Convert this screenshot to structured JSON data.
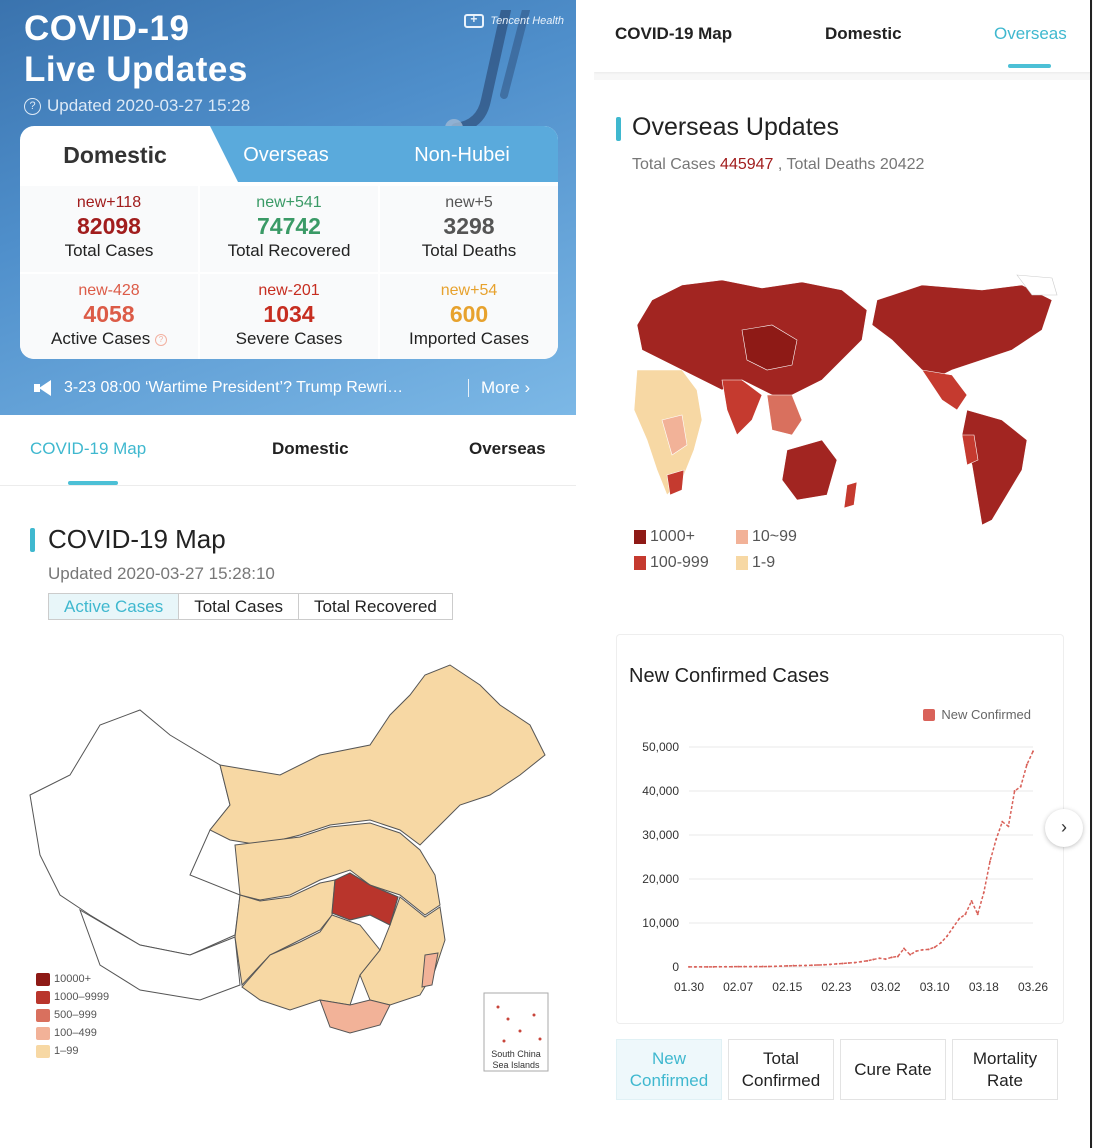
{
  "header": {
    "title_line1": "COVID-19",
    "title_line2": "Live Updates",
    "brand": "Tencent Health",
    "updated": "Updated 2020-03-27 15:28"
  },
  "stats": {
    "tabs": [
      "Domestic",
      "Overseas",
      "Non-Hubei"
    ],
    "cells": [
      {
        "new": "new+118",
        "value": "82098",
        "label": "Total Cases",
        "color": "#a11d1d"
      },
      {
        "new": "new+541",
        "value": "74742",
        "label": "Total Recovered",
        "color": "#3a9a66"
      },
      {
        "new": "new+5",
        "value": "3298",
        "label": "Total Deaths",
        "color": "#555555"
      },
      {
        "new": "new-428",
        "value": "4058",
        "label": "Active Cases",
        "color": "#dc5b47"
      },
      {
        "new": "new-201",
        "value": "1034",
        "label": "Severe Cases",
        "color": "#c62d20"
      },
      {
        "new": "new+54",
        "value": "600",
        "label": "Imported Cases",
        "color": "#e7a22e"
      }
    ]
  },
  "announcement": {
    "text": "3-23 08:00 ‘Wartime President’? Trump Rewri…",
    "more": "More"
  },
  "nav": {
    "items": [
      "COVID-19 Map",
      "Domestic",
      "Overseas"
    ]
  },
  "china_map": {
    "title": "COVID-19 Map",
    "updated": "Updated 2020-03-27 15:28:10",
    "segments": [
      "Active Cases",
      "Total Cases",
      "Total Recovered"
    ],
    "legend": [
      {
        "label": "10000+",
        "color": "#8e1a16"
      },
      {
        "label": "1000–9999",
        "color": "#b9352c"
      },
      {
        "label": "500–999",
        "color": "#d9705e"
      },
      {
        "label": "100–499",
        "color": "#f2b298"
      },
      {
        "label": "1–99",
        "color": "#f7d8a4"
      }
    ],
    "inset_label_1": "South China",
    "inset_label_2": "Sea Islands"
  },
  "overseas": {
    "title": "Overseas Updates",
    "totals_prefix": "Total Cases",
    "total_cases": "445947",
    "totals_middle": ", Total Deaths",
    "total_deaths": "20422",
    "legend": [
      {
        "label": "1000+",
        "color": "#8e1a16"
      },
      {
        "label": "10~99",
        "color": "#f2b298"
      },
      {
        "label": "100-999",
        "color": "#c53a2f"
      },
      {
        "label": "1-9",
        "color": "#f7d8a4"
      }
    ]
  },
  "chart_data": {
    "type": "line",
    "title": "New Confirmed Cases",
    "series": [
      {
        "name": "New Confirmed",
        "color": "#d9625a"
      }
    ],
    "x": [
      "01.30",
      "01.31",
      "02.01",
      "02.02",
      "02.03",
      "02.04",
      "02.05",
      "02.06",
      "02.07",
      "02.08",
      "02.09",
      "02.10",
      "02.11",
      "02.12",
      "02.13",
      "02.14",
      "02.15",
      "02.16",
      "02.17",
      "02.18",
      "02.19",
      "02.20",
      "02.21",
      "02.22",
      "02.23",
      "02.24",
      "02.25",
      "02.26",
      "02.27",
      "02.28",
      "02.29",
      "03.01",
      "03.02",
      "03.03",
      "03.04",
      "03.05",
      "03.06",
      "03.07",
      "03.08",
      "03.09",
      "03.10",
      "03.11",
      "03.12",
      "03.13",
      "03.14",
      "03.15",
      "03.16",
      "03.17",
      "03.18",
      "03.19",
      "03.20",
      "03.21",
      "03.22",
      "03.23",
      "03.24",
      "03.25",
      "03.26"
    ],
    "values": [
      20,
      20,
      40,
      30,
      40,
      50,
      60,
      70,
      80,
      80,
      90,
      100,
      100,
      120,
      150,
      200,
      250,
      300,
      320,
      350,
      400,
      450,
      500,
      600,
      700,
      800,
      900,
      1000,
      1200,
      1400,
      1700,
      2000,
      1800,
      2200,
      2400,
      4200,
      2800,
      3600,
      3900,
      4000,
      4500,
      5500,
      7000,
      9000,
      11000,
      12000,
      15000,
      12000,
      17000,
      24000,
      29000,
      33000,
      32000,
      40000,
      41000,
      46000,
      49000
    ],
    "tick_labels": [
      "01.30",
      "02.07",
      "02.15",
      "02.23",
      "03.02",
      "03.10",
      "03.18",
      "03.26"
    ],
    "y_ticks": [
      "0",
      "10,000",
      "20,000",
      "30,000",
      "40,000",
      "50,000"
    ],
    "ylim": [
      0,
      50000
    ],
    "legend_position": "top-right",
    "grid": true
  },
  "bottom_tabs": [
    {
      "line1": "New",
      "line2": "Confirmed"
    },
    {
      "line1": "Total",
      "line2": "Confirmed"
    },
    {
      "line1": "Cure Rate",
      "line2": ""
    },
    {
      "line1": "Mortality",
      "line2": "Rate"
    }
  ]
}
